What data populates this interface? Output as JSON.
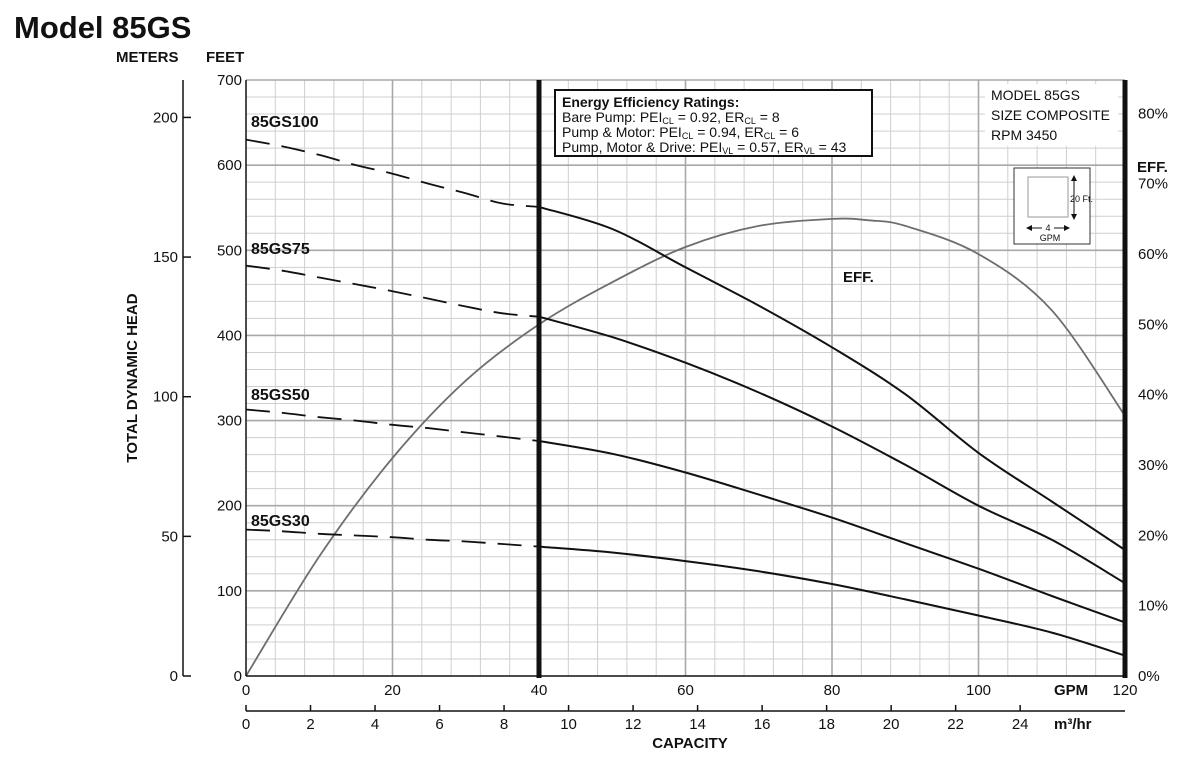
{
  "chart_data": {
    "type": "line",
    "title": "Model 85GS",
    "axis_units": {
      "meters": "METERS",
      "feet": "FEET",
      "eff": "EFF.",
      "gpm": "GPM",
      "m3hr": "m³/hr"
    },
    "ylabel": "TOTAL DYNAMIC HEAD",
    "xlabel": "CAPACITY",
    "x_gpm": {
      "lim": [
        0,
        120
      ],
      "ticks": [
        "0",
        "20",
        "40",
        "60",
        "80",
        "100",
        "120"
      ]
    },
    "x_m3hr": {
      "lim": [
        0,
        27.25
      ],
      "ticks": [
        "0",
        "2",
        "4",
        "6",
        "8",
        "10",
        "12",
        "14",
        "16",
        "18",
        "20",
        "22",
        "24"
      ]
    },
    "y_feet": {
      "lim": [
        0,
        700
      ],
      "ticks": [
        "0",
        "100",
        "200",
        "300",
        "400",
        "500",
        "600",
        "700"
      ]
    },
    "y_meters": {
      "lim": [
        0,
        213.4
      ],
      "ticks": [
        "0",
        "50",
        "100",
        "150",
        "200"
      ]
    },
    "y_eff": {
      "lim": [
        0,
        0.8475
      ],
      "ticks": [
        "0%",
        "10%",
        "20%",
        "30%",
        "40%",
        "50%",
        "60%",
        "70%",
        "80%"
      ]
    },
    "grid": true,
    "operating_range_gpm": [
      40,
      120
    ],
    "series": [
      {
        "name": "85GS100",
        "dashed_x": [
          0,
          5,
          10,
          15,
          20,
          25,
          30,
          35,
          40
        ],
        "dashed_y": [
          630,
          622,
          612,
          600,
          590,
          578,
          567,
          555,
          551
        ],
        "solid_x": [
          40,
          50,
          60,
          70,
          80,
          90,
          100,
          110,
          120
        ],
        "solid_y": [
          551,
          525,
          480,
          435,
          386,
          331,
          262,
          205,
          148
        ]
      },
      {
        "name": "85GS75",
        "dashed_x": [
          0,
          5,
          10,
          15,
          20,
          25,
          30,
          35,
          40
        ],
        "dashed_y": [
          482,
          476,
          468,
          460,
          452,
          443,
          434,
          426,
          422
        ],
        "solid_x": [
          40,
          50,
          60,
          70,
          80,
          90,
          100,
          110,
          120
        ],
        "solid_y": [
          422,
          398,
          368,
          333,
          293,
          248,
          200,
          160,
          109
        ]
      },
      {
        "name": "85GS50",
        "dashed_x": [
          0,
          5,
          10,
          15,
          20,
          25,
          30,
          35,
          40
        ],
        "dashed_y": [
          313,
          309,
          304,
          300,
          295,
          291,
          286,
          281,
          276
        ],
        "solid_x": [
          40,
          50,
          60,
          70,
          80,
          90,
          100,
          110,
          120
        ],
        "solid_y": [
          276,
          261,
          239,
          213,
          186,
          156,
          126,
          94,
          63
        ]
      },
      {
        "name": "85GS30",
        "dashed_x": [
          0,
          5,
          10,
          15,
          20,
          25,
          30,
          35,
          40
        ],
        "dashed_y": [
          172,
          170,
          167,
          165,
          163,
          160,
          158,
          155,
          152
        ],
        "solid_x": [
          40,
          50,
          60,
          70,
          80,
          90,
          100,
          110,
          120
        ],
        "solid_y": [
          152,
          145,
          135,
          123,
          108,
          90,
          71,
          51,
          24
        ]
      }
    ],
    "efficiency": {
      "name": "EFF.",
      "x": [
        0,
        10,
        20,
        30,
        40,
        50,
        60,
        70,
        80,
        85,
        90,
        100,
        110,
        120
      ],
      "y": [
        0.0,
        0.17,
        0.31,
        0.42,
        0.5,
        0.56,
        0.61,
        0.64,
        0.65,
        0.648,
        0.64,
        0.6,
        0.52,
        0.37
      ]
    },
    "energy_box": {
      "title": "Energy Efficiency Ratings:",
      "lines": [
        [
          "Bare Pump: PEI",
          "CL",
          " = 0.92, ER",
          "CL",
          " = 8"
        ],
        [
          "Pump & Motor: PEI",
          "CL",
          " = 0.94, ER",
          "CL",
          " = 6"
        ],
        [
          "Pump, Motor & Drive: PEI",
          "VL",
          " = 0.57, ER",
          "VL",
          " = 43"
        ]
      ]
    },
    "model_info": [
      "MODEL 85GS",
      "SIZE COMPOSITE",
      "RPM 3450"
    ],
    "grid_key": {
      "vertical": "20 Ft.",
      "horizontal": "4",
      "unit": "GPM"
    }
  }
}
